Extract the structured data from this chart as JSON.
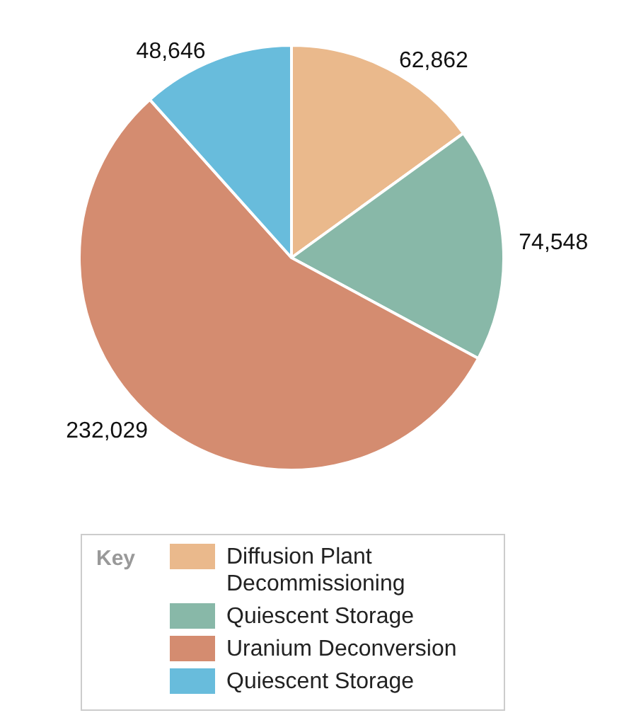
{
  "chart_data": {
    "type": "pie",
    "legend_title": "Key",
    "legend": "bottom",
    "categories": [
      "Diffusion Plant Decommissioning",
      "Quiescent Storage",
      "Uranium Deconversion",
      "Quiescent Storage"
    ],
    "values": [
      62862,
      74548,
      232029,
      48646
    ],
    "value_labels": [
      "62,862",
      "74,548",
      "232,029",
      "48,646"
    ],
    "colors": [
      "#eab98c",
      "#88b8a8",
      "#d48c70",
      "#68bcdc"
    ]
  }
}
